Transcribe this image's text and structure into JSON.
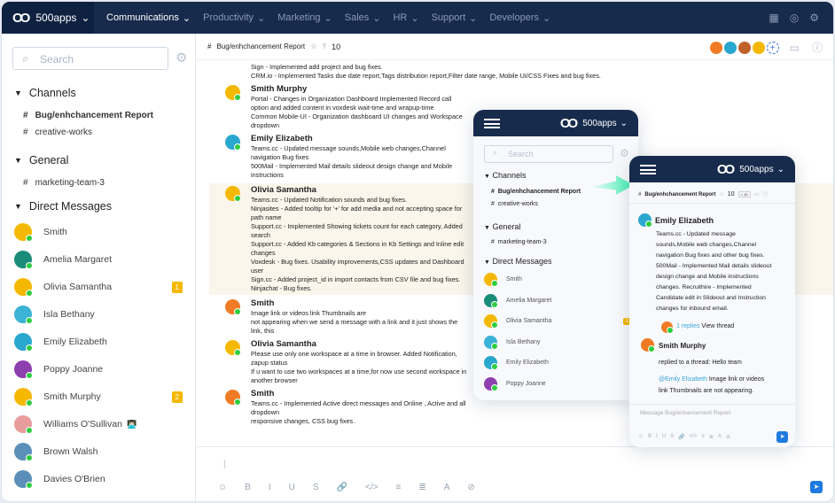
{
  "nav": {
    "brand": "500apps",
    "items": [
      {
        "label": "Communications",
        "active": true
      },
      {
        "label": "Productivity"
      },
      {
        "label": "Marketing"
      },
      {
        "label": "Sales"
      },
      {
        "label": "HR"
      },
      {
        "label": "Support"
      },
      {
        "label": "Developers"
      }
    ],
    "icons": [
      "grid-icon",
      "help-icon",
      "settings-icon"
    ]
  },
  "sidebar": {
    "search_placeholder": "Search",
    "channels_title": "Channels",
    "channels": [
      {
        "label": "Bug/enhchancement Report",
        "active": true
      },
      {
        "label": "creative-works"
      }
    ],
    "general_title": "General",
    "general": [
      {
        "label": "marketing-team-3"
      }
    ],
    "dm_title": "Direct Messages",
    "dms": [
      {
        "name": "Smith",
        "color": "#f5b800"
      },
      {
        "name": "Amelia Margaret",
        "color": "#1a8c7a"
      },
      {
        "name": "Olivia Samantha",
        "color": "#f5b800",
        "badge": "1"
      },
      {
        "name": "Isla Bethany",
        "color": "#3bb2d6"
      },
      {
        "name": "Emily Elizabeth",
        "color": "#2aa7cf"
      },
      {
        "name": "Poppy Joanne",
        "color": "#8e3fae"
      },
      {
        "name": "Smith Murphy",
        "color": "#f5b800",
        "badge": "2"
      },
      {
        "name": "Williams O'Sullivan",
        "color": "#e89c9c",
        "emoji": "👨🏻‍💻"
      },
      {
        "name": "Brown Walsh",
        "color": "#5b8fb9"
      },
      {
        "name": "Davies O'Brien",
        "color": "#5b8fb9"
      }
    ]
  },
  "channel": {
    "name": "Bug/enhchancement Report",
    "members": "10",
    "tag": "⌂ 10"
  },
  "messages": [
    {
      "who": "",
      "lines": [
        "Sign - Implemented add project and bug fixes.",
        "CRM.io - Implemented Tasks due date report,Tags distribution report,Filter date range, Mobile UI/CSS Fixes and bug fixes."
      ]
    },
    {
      "who": "Smith Murphy",
      "color": "#f5b800",
      "lines": [
        "Portal - Changes in Organization Dashboard Implemented Record call option and added content in voxdesk wait-time and wrapup-time",
        "Common Mobile-UI - Organization dashboard UI changes and Workspace dropdown"
      ]
    },
    {
      "who": "Emily Elizabeth",
      "color": "#2aa7cf",
      "lines": [
        "Teams.cc - Updated message sounds,Mobile web changes,Channel navigation Bug fixes",
        "500Mail - Implemented Mail details slideout design change and Mobile instructions"
      ]
    },
    {
      "who": "Olivia Samantha",
      "color": "#f5b800",
      "lines": [
        "Teams.cc - Updated Notification sounds and bug fixes.",
        "Ninjasites - Added tooltip for '+' for add media and not accepting space for path name",
        "Support.cc - Implemented Showing tickets count for each category, Added search",
        "Support.cc - Added Kb categories & Sections in Kb Settings and Inline edit changes",
        "Voxdesk - Bug fixes. Usability improvements,CSS updates and Dashboard user",
        "Sign.cc - Added project_id in import contacts from CSV file and bug fixes.",
        "Ninjachat - Bug fixes."
      ]
    },
    {
      "who": "Smith",
      "color": "#f07b24",
      "lines": [
        "Image link or videos link Thumbnails are",
        "not appearing when we send a message with a link and it just shows the link, this"
      ]
    },
    {
      "who": "Olivia Samantha",
      "color": "#f5b800",
      "lines": [
        "Please use only one workspace at a time in browser. Added Notification, zapup status",
        "If u want to use two workspaces at a time,for now use second workspace in another browser"
      ]
    },
    {
      "who": "Smith",
      "color": "#f07b24",
      "lines": [
        "Teams.cc - Implemented Active direct messages and Online , Active and all dropdown",
        "responsive changes, CSS bug fixes."
      ]
    }
  ],
  "mobile": {
    "brand": "500apps",
    "thread": {
      "who": "Emily Elizabeth",
      "text": [
        "Teams.cc - Updated message",
        "sounds,Mobile web changes,Channel",
        "navigation Bug fixes and other bug fixes.",
        "500Mail - Implemented Mail details slideout",
        "design change and Mobile instructions",
        "changes. Recruithire - Implemented",
        "Candidate edit in Slideout and Instruction",
        "changes for inbound email."
      ],
      "replies": "1 replies",
      "view_thread": "View thread",
      "reply_who": "Smith Murphy",
      "reply_text": "replied to a thread:  Hello team",
      "mention": "@Emily Elizabeth",
      "mention_text": " Image link or videos",
      "mention_text2": "link Thumbnails are not appearing."
    },
    "composer_placeholder": "Message Bug/enhancement Report"
  },
  "toolbar": [
    "☺",
    "B",
    "I",
    "U",
    "S",
    "🔗",
    "</>",
    "≡",
    "≣",
    "A",
    "⊘"
  ],
  "send_icon": "➤"
}
